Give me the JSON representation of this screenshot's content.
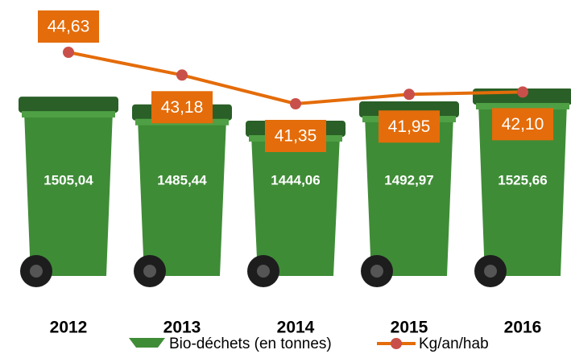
{
  "chart_data": {
    "type": "bar-line",
    "categories": [
      "2012",
      "2013",
      "2014",
      "2015",
      "2016"
    ],
    "series": [
      {
        "name": "Bio-déchets (en tonnes)",
        "color": "#3f8c37",
        "values": [
          1505.04,
          1485.44,
          1444.06,
          1492.97,
          1525.66
        ],
        "value_labels": [
          "1505,04",
          "1485,44",
          "1444,06",
          "1492,97",
          "1525,66"
        ]
      },
      {
        "name": "Kg/an/hab",
        "color": "#e46c0a",
        "marker_color": "#c9504a",
        "values": [
          44.63,
          43.18,
          41.35,
          41.95,
          42.1
        ],
        "value_labels": [
          "44,63",
          "43,18",
          "41,35",
          "41,95",
          "42,10"
        ]
      }
    ]
  }
}
